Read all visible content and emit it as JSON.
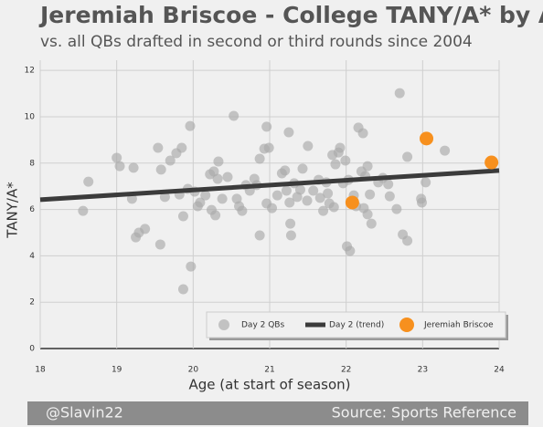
{
  "chart_data": {
    "type": "scatter",
    "title": "Jeremiah Briscoe - College TANY/A* by Age",
    "subtitle": "vs. all QBs drafted in second or third rounds since 2004",
    "x_label": "Age (at start of season)",
    "y_label": "TANY/A*",
    "footer_left": "@Slavin22",
    "footer_right": "Source: Sports Reference",
    "xlim": [
      18,
      24
    ],
    "ylim": [
      -0.63,
      12.44
    ],
    "xticks": [
      18,
      19,
      20,
      21,
      22,
      23,
      24
    ],
    "yticks": [
      0,
      2,
      4,
      6,
      8,
      10,
      12
    ],
    "grid": true,
    "legend": "lower right",
    "series": [
      {
        "name": "Day 2 QBs",
        "color": "#a9a9a9",
        "kind": "scatter",
        "x": [
          18.56,
          18.63,
          19.0,
          19.04,
          19.2,
          19.22,
          19.25,
          19.29,
          19.37,
          19.54,
          19.57,
          19.58,
          19.63,
          19.7,
          19.78,
          19.82,
          19.85,
          19.87,
          19.87,
          19.93,
          19.96,
          19.97,
          20.02,
          20.06,
          20.09,
          20.16,
          20.22,
          20.24,
          20.27,
          20.29,
          20.32,
          20.33,
          20.38,
          20.45,
          20.53,
          20.57,
          20.6,
          20.64,
          20.69,
          20.74,
          20.8,
          20.83,
          20.87,
          20.87,
          20.93,
          20.96,
          20.96,
          20.99,
          21.03,
          21.1,
          21.16,
          21.2,
          21.22,
          21.25,
          21.26,
          21.27,
          21.28,
          21.32,
          21.36,
          21.4,
          21.43,
          21.49,
          21.5,
          21.57,
          21.64,
          21.66,
          21.7,
          21.74,
          21.76,
          21.78,
          21.82,
          21.84,
          21.86,
          21.9,
          21.92,
          21.96,
          21.99,
          22.01,
          22.03,
          22.05,
          22.1,
          22.13,
          22.16,
          22.22,
          22.2,
          22.23,
          22.25,
          22.28,
          22.31,
          22.28,
          22.33,
          22.42,
          22.48,
          22.55,
          22.57,
          22.66,
          22.7,
          22.74,
          22.8,
          22.98,
          22.99,
          23.04,
          23.29,
          22.8
        ],
        "values": [
          5.94,
          7.2,
          8.23,
          7.87,
          6.46,
          7.8,
          4.8,
          5.0,
          5.16,
          8.66,
          4.49,
          7.72,
          6.54,
          8.11,
          8.43,
          6.65,
          8.66,
          5.71,
          2.56,
          6.89,
          9.6,
          3.54,
          6.77,
          6.14,
          6.3,
          6.61,
          7.52,
          5.98,
          7.64,
          5.75,
          7.32,
          8.07,
          6.46,
          7.4,
          10.04,
          6.46,
          6.14,
          5.94,
          7.05,
          6.81,
          7.32,
          7.05,
          8.19,
          4.88,
          8.62,
          9.57,
          6.26,
          8.66,
          6.06,
          6.61,
          7.56,
          7.68,
          6.81,
          9.33,
          6.3,
          5.39,
          4.88,
          7.13,
          6.54,
          6.85,
          7.76,
          6.38,
          8.74,
          6.81,
          7.28,
          6.5,
          5.94,
          7.17,
          6.69,
          6.26,
          8.35,
          6.1,
          7.95,
          8.46,
          8.66,
          7.13,
          8.11,
          4.41,
          7.28,
          4.21,
          6.61,
          6.14,
          9.53,
          9.29,
          7.64,
          6.06,
          7.44,
          7.87,
          6.65,
          5.79,
          5.39,
          7.17,
          7.36,
          7.09,
          6.57,
          6.02,
          11.02,
          4.92,
          4.65,
          6.46,
          6.3,
          7.17,
          8.54,
          8.27
        ]
      },
      {
        "name": "Day 2 (trend)",
        "color": "#3b3b3b",
        "kind": "line",
        "x": [
          18,
          24
        ],
        "values": [
          6.42,
          7.68
        ]
      },
      {
        "name": "Jeremiah Briscoe",
        "color": "#f7901e",
        "kind": "scatter",
        "x": [
          22.08,
          23.05,
          23.9
        ],
        "values": [
          6.3,
          9.06,
          8.03
        ]
      }
    ]
  }
}
